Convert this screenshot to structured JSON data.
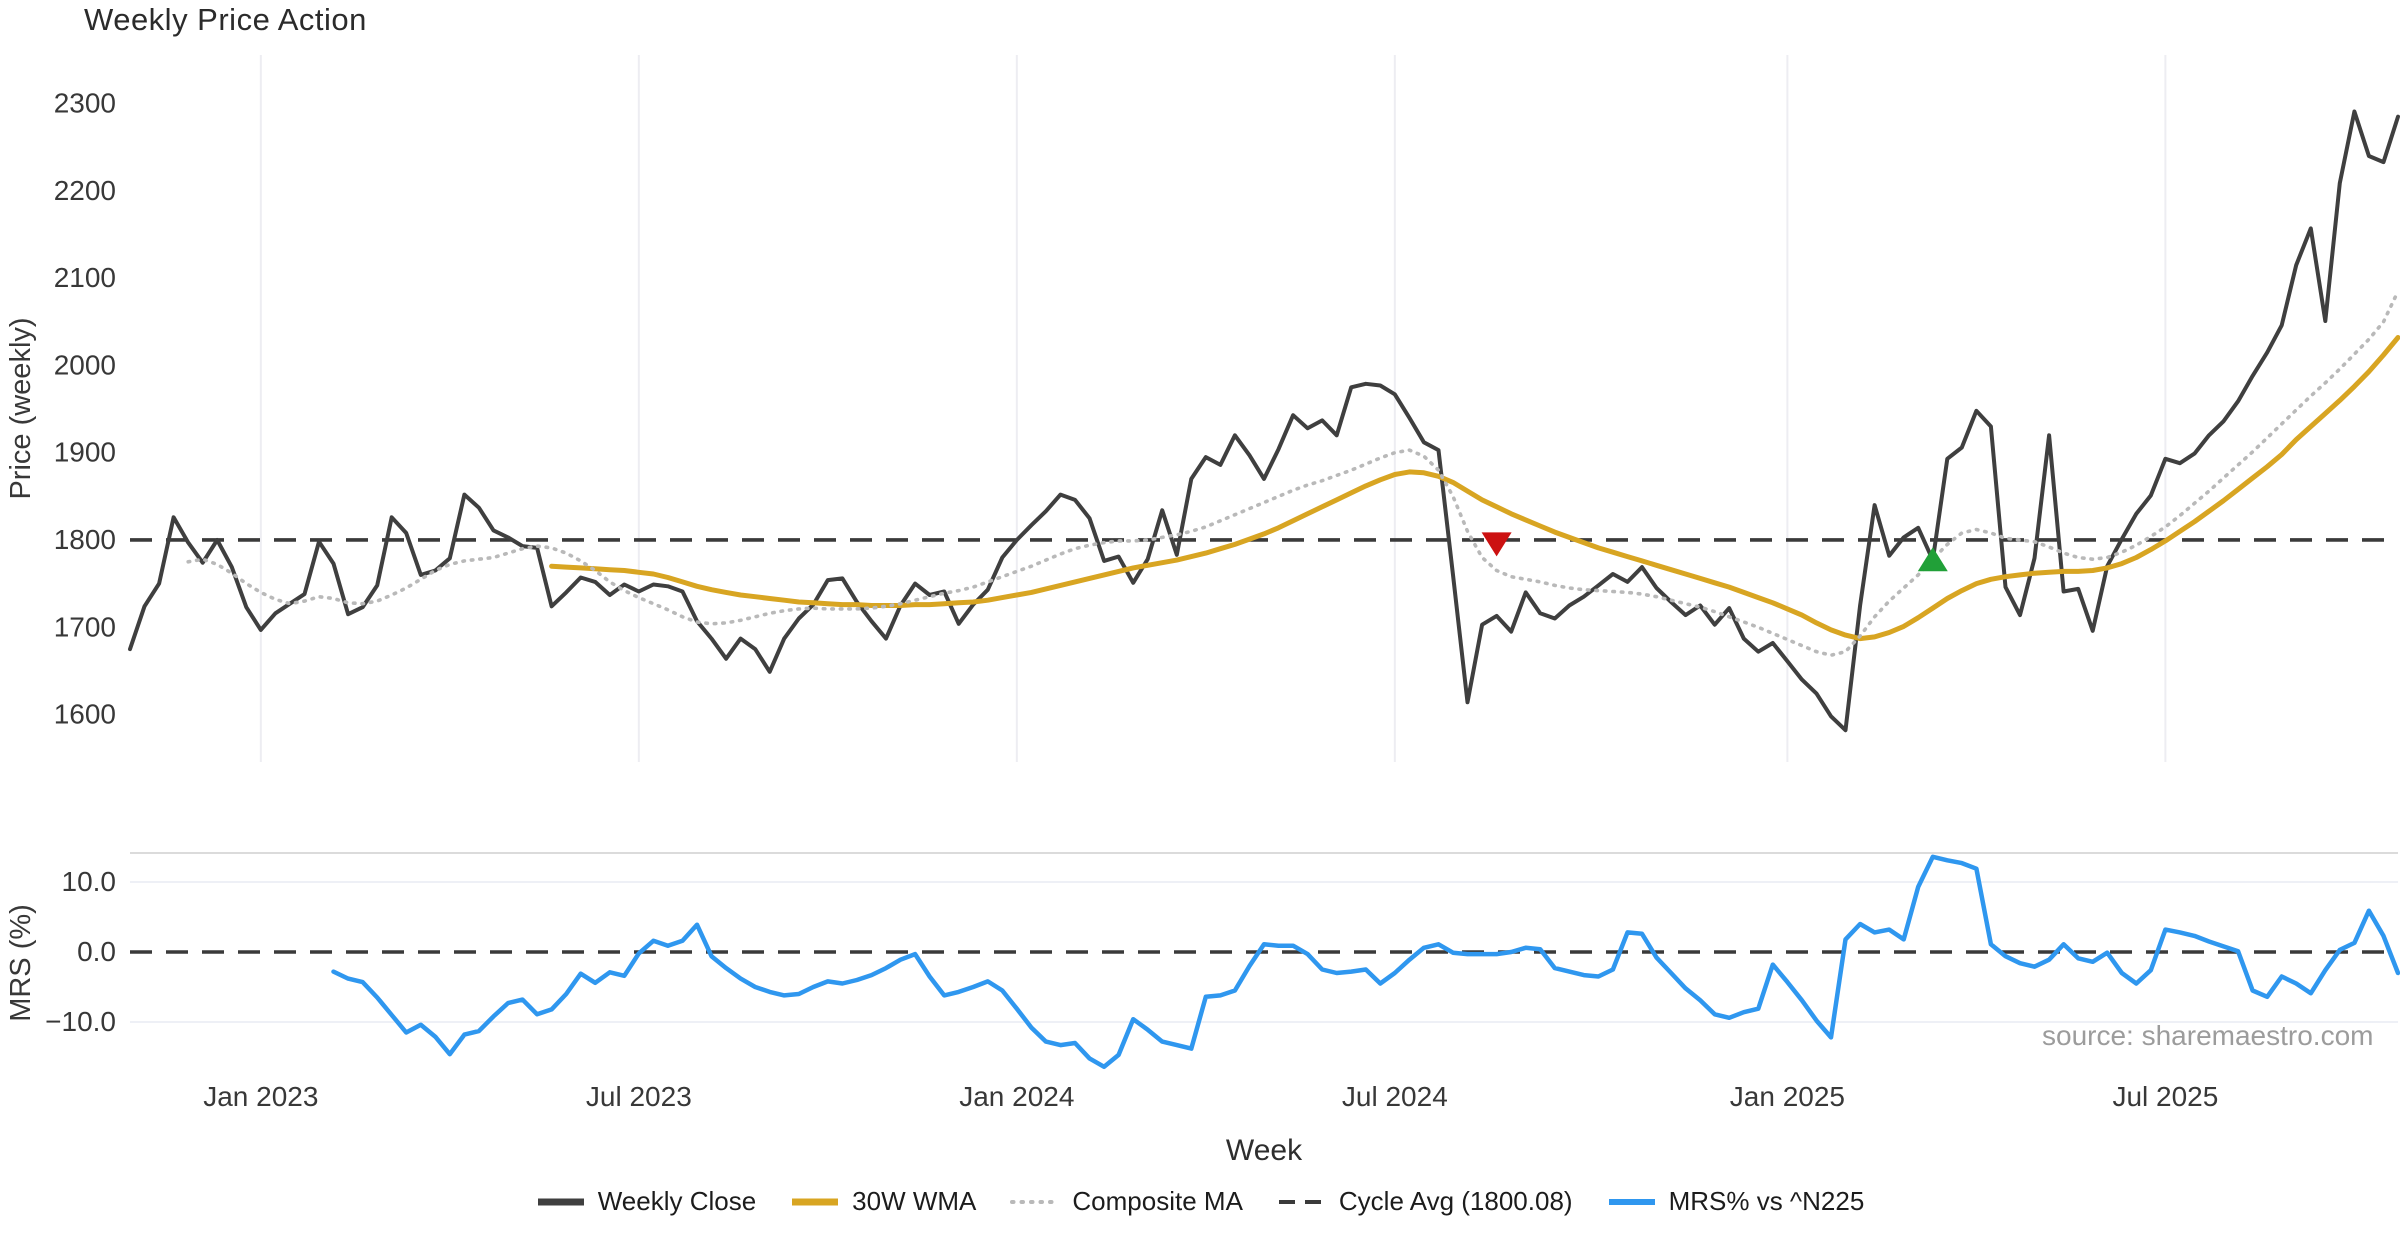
{
  "title": "Weekly Price Action",
  "source_note": "source: sharemaestro.com",
  "colors": {
    "weekly_close": "#3f3f3f",
    "wma_30w": "#d8a522",
    "composite_ma": "#b9b9b9",
    "cycle_avg_dash": "#3a3a3a",
    "mrs_line": "#2f97ef",
    "sell_marker": "#cc1111",
    "buy_marker": "#21a038",
    "gridline": "#ededf2",
    "panel_border": "#cfcfcf",
    "tick_text": "#383838",
    "source_text": "#9c9c9c"
  },
  "chart_data": {
    "type": "line",
    "title": "Weekly Price Action",
    "xlabel": "Week",
    "ylabel_top": "Price (weekly)",
    "ylabel_bottom": "MRS (%)",
    "start_week": "2022-10-31",
    "weeks_total": 157,
    "x_ticks": [
      {
        "week": 9,
        "label": "Jan 2023"
      },
      {
        "week": 35,
        "label": "Jul 2023"
      },
      {
        "week": 61,
        "label": "Jan 2024"
      },
      {
        "week": 87,
        "label": "Jul 2024"
      },
      {
        "week": 114,
        "label": "Jan 2025"
      },
      {
        "week": 140,
        "label": "Jul 2025"
      }
    ],
    "price_ylim": [
      1546,
      2355
    ],
    "price_yticks": [
      1600,
      1700,
      1800,
      1900,
      2000,
      2100,
      2200,
      2300
    ],
    "mrs_ylim": [
      -17.1,
      14.1
    ],
    "mrs_yticks": [
      {
        "value": 10,
        "label": "10.0"
      },
      {
        "value": 0,
        "label": "0.0"
      },
      {
        "value": -10,
        "label": "−10.0"
      }
    ],
    "cycle_avg": 1800.08,
    "grid": "vertical-only",
    "legend_position": "bottom-center",
    "series": [
      {
        "name": "Weekly Close",
        "color": "#3f3f3f",
        "style": "solid",
        "panel": "top",
        "stroke_width": 4,
        "start_index": 0,
        "values": [
          1675,
          1724,
          1750,
          1826,
          1797,
          1774,
          1800,
          1769,
          1723,
          1697,
          1716,
          1727,
          1738,
          1798,
          1773,
          1715,
          1723,
          1748,
          1826,
          1808,
          1760,
          1765,
          1779,
          1852,
          1837,
          1811,
          1803,
          1793,
          1791,
          1724,
          1740,
          1757,
          1752,
          1737,
          1749,
          1741,
          1749,
          1747,
          1741,
          1707,
          1687,
          1664,
          1687,
          1675,
          1649,
          1687,
          1710,
          1726,
          1754,
          1756,
          1729,
          1707,
          1687,
          1725,
          1750,
          1737,
          1741,
          1704,
          1726,
          1743,
          1780,
          1800,
          1817,
          1833,
          1852,
          1846,
          1825,
          1776,
          1781,
          1751,
          1778,
          1834,
          1783,
          1870,
          1895,
          1886,
          1920,
          1897,
          1870,
          1904,
          1943,
          1928,
          1937,
          1920,
          1975,
          1979,
          1977,
          1967,
          1940,
          1912,
          1903,
          1760,
          1614,
          1703,
          1713,
          1695,
          1740,
          1716,
          1710,
          1725,
          1735,
          1748,
          1761,
          1752,
          1769,
          1745,
          1729,
          1714,
          1725,
          1703,
          1722,
          1687,
          1672,
          1682,
          1661,
          1640,
          1624,
          1598,
          1582,
          1725,
          1840,
          1782,
          1803,
          1814,
          1777,
          1893,
          1906,
          1948,
          1930,
          1746,
          1714,
          1779,
          1920,
          1741,
          1744,
          1696,
          1770,
          1801,
          1830,
          1851,
          1893,
          1888,
          1899,
          1920,
          1936,
          1959,
          1988,
          2015,
          2046,
          2115,
          2157,
          2051,
          2209,
          2291,
          2240,
          2233,
          2285
        ]
      },
      {
        "name": "30W WMA",
        "color": "#d8a522",
        "style": "solid",
        "panel": "top",
        "stroke_width": 5,
        "start_index": 29,
        "values": [
          1770,
          1769,
          1768,
          1767,
          1766,
          1765,
          1763,
          1761,
          1757,
          1752,
          1747,
          1743,
          1740,
          1737,
          1735,
          1733,
          1731,
          1729,
          1728,
          1727,
          1726,
          1726,
          1725,
          1725,
          1725,
          1726,
          1726,
          1727,
          1728,
          1729,
          1731,
          1734,
          1737,
          1740,
          1744,
          1748,
          1752,
          1756,
          1760,
          1764,
          1768,
          1771,
          1774,
          1777,
          1781,
          1785,
          1790,
          1795,
          1801,
          1807,
          1814,
          1822,
          1830,
          1838,
          1846,
          1854,
          1862,
          1869,
          1875,
          1878,
          1877,
          1873,
          1866,
          1856,
          1846,
          1838,
          1830,
          1823,
          1816,
          1809,
          1803,
          1797,
          1791,
          1786,
          1781,
          1776,
          1771,
          1766,
          1761,
          1756,
          1751,
          1746,
          1740,
          1734,
          1728,
          1721,
          1714,
          1705,
          1697,
          1691,
          1687,
          1689,
          1694,
          1701,
          1711,
          1722,
          1733,
          1742,
          1750,
          1755,
          1758,
          1760,
          1762,
          1763,
          1764,
          1764,
          1765,
          1768,
          1773,
          1780,
          1789,
          1799,
          1810,
          1821,
          1833,
          1845,
          1858,
          1871,
          1884,
          1898,
          1915,
          1930,
          1945,
          1960,
          1976,
          1993,
          2012,
          2032
        ]
      },
      {
        "name": "Composite MA",
        "color": "#b9b9b9",
        "style": "dotted",
        "panel": "top",
        "stroke_width": 3.6,
        "start_index": 4,
        "values": [
          1775,
          1778,
          1772,
          1762,
          1750,
          1740,
          1732,
          1727,
          1730,
          1735,
          1733,
          1728,
          1727,
          1730,
          1737,
          1745,
          1755,
          1765,
          1772,
          1776,
          1778,
          1780,
          1785,
          1790,
          1793,
          1791,
          1785,
          1776,
          1765,
          1752,
          1742,
          1734,
          1727,
          1720,
          1712,
          1706,
          1704,
          1705,
          1708,
          1712,
          1716,
          1719,
          1721,
          1722,
          1721,
          1721,
          1721,
          1722,
          1724,
          1727,
          1731,
          1735,
          1739,
          1742,
          1746,
          1752,
          1758,
          1764,
          1770,
          1777,
          1784,
          1790,
          1794,
          1797,
          1799,
          1799,
          1800,
          1803,
          1806,
          1810,
          1815,
          1822,
          1829,
          1836,
          1843,
          1850,
          1857,
          1863,
          1868,
          1874,
          1880,
          1887,
          1894,
          1900,
          1903,
          1896,
          1880,
          1850,
          1810,
          1780,
          1765,
          1758,
          1755,
          1752,
          1748,
          1745,
          1743,
          1742,
          1741,
          1740,
          1738,
          1735,
          1731,
          1727,
          1723,
          1718,
          1712,
          1706,
          1700,
          1693,
          1686,
          1679,
          1672,
          1668,
          1672,
          1690,
          1712,
          1730,
          1745,
          1760,
          1778,
          1795,
          1808,
          1812,
          1808,
          1802,
          1800,
          1798,
          1792,
          1785,
          1780,
          1778,
          1780,
          1786,
          1794,
          1804,
          1815,
          1828,
          1842,
          1856,
          1871,
          1886,
          1901,
          1917,
          1933,
          1949,
          1965,
          1980,
          1996,
          2013,
          2030,
          2050,
          2085
        ]
      },
      {
        "name": "MRS% vs ^N225",
        "color": "#2f97ef",
        "style": "solid",
        "panel": "bottom",
        "stroke_width": 4.5,
        "start_index": 14,
        "values": [
          -2.8,
          -3.8,
          -4.3,
          -6.5,
          -9.0,
          -11.5,
          -10.4,
          -12.1,
          -14.6,
          -11.8,
          -11.3,
          -9.2,
          -7.3,
          -6.8,
          -8.9,
          -8.2,
          -6.0,
          -3.1,
          -4.4,
          -2.9,
          -3.4,
          -0.2,
          1.6,
          0.9,
          1.6,
          3.9,
          -0.6,
          -2.3,
          -3.8,
          -5.0,
          -5.7,
          -6.2,
          -6.0,
          -5.0,
          -4.2,
          -4.5,
          -4.0,
          -3.3,
          -2.3,
          -1.1,
          -0.3,
          -3.5,
          -6.2,
          -5.7,
          -5.0,
          -4.2,
          -5.5,
          -8.1,
          -10.8,
          -12.8,
          -13.3,
          -13.0,
          -15.2,
          -16.4,
          -14.7,
          -9.6,
          -11.1,
          -12.8,
          -13.3,
          -13.8,
          -6.4,
          -6.2,
          -5.5,
          -2.0,
          1.1,
          0.9,
          0.9,
          -0.3,
          -2.5,
          -3.0,
          -2.8,
          -2.5,
          -4.5,
          -3.0,
          -1.1,
          0.6,
          1.1,
          -0.1,
          -0.3,
          -0.3,
          -0.3,
          0.0,
          0.6,
          0.4,
          -2.3,
          -2.8,
          -3.3,
          -3.5,
          -2.5,
          2.8,
          2.6,
          -0.8,
          -3.0,
          -5.2,
          -6.9,
          -8.9,
          -9.4,
          -8.6,
          -8.1,
          -1.8,
          -4.3,
          -6.9,
          -9.8,
          -12.2,
          1.8,
          4.0,
          2.8,
          3.2,
          1.8,
          9.3,
          13.6,
          13.1,
          12.7,
          11.9,
          1.1,
          -0.6,
          -1.6,
          -2.1,
          -1.1,
          1.1,
          -0.9,
          -1.4,
          -0.1,
          -3.0,
          -4.5,
          -2.6,
          3.2,
          2.8,
          2.3,
          1.5,
          0.8,
          0.1,
          -5.5,
          -6.4,
          -3.5,
          -4.5,
          -5.9,
          -2.6,
          0.3,
          1.3,
          5.9,
          2.3,
          -3.0
        ]
      }
    ],
    "reference_lines": [
      {
        "panel": "top",
        "value": 1800.08,
        "label": "Cycle Avg (1800.08)",
        "style": "dashed",
        "color": "#3a3a3a"
      },
      {
        "panel": "bottom",
        "value": 0,
        "label": "",
        "style": "dashed",
        "color": "#3a3a3a"
      }
    ],
    "markers": [
      {
        "type": "triangle-down",
        "meaning": "sell-signal",
        "color": "#cc1111",
        "week": 94,
        "price": 1795
      },
      {
        "type": "triangle-up",
        "meaning": "buy-signal",
        "color": "#21a038",
        "week": 124,
        "price": 1778
      }
    ],
    "legend": [
      {
        "label": "Weekly Close",
        "color": "#3f3f3f",
        "style": "solid",
        "sample_width": 7
      },
      {
        "label": "30W WMA",
        "color": "#d8a522",
        "style": "solid",
        "sample_width": 7
      },
      {
        "label": "Composite MA",
        "color": "#b9b9b9",
        "style": "dotted",
        "sample_width": 4
      },
      {
        "label": "Cycle Avg (1800.08)",
        "color": "#3a3a3a",
        "style": "dashed",
        "sample_width": 4
      },
      {
        "label": "MRS% vs ^N225",
        "color": "#2f97ef",
        "style": "solid",
        "sample_width": 6
      }
    ]
  }
}
